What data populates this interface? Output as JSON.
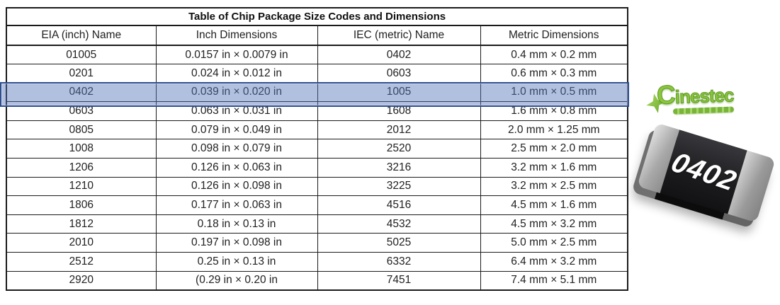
{
  "table": {
    "title": "Table of Chip Package Size Codes and Dimensions",
    "columns": [
      "EIA (inch) Name",
      "Inch Dimensions",
      "IEC (metric) Name",
      "Metric Dimensions"
    ],
    "rows": [
      [
        "01005",
        "0.0157 in × 0.0079 in",
        "0402",
        "0.4 mm × 0.2 mm"
      ],
      [
        "0201",
        "0.024 in × 0.012 in",
        "0603",
        "0.6 mm × 0.3 mm"
      ],
      [
        "0402",
        "0.039 in × 0.020 in",
        "1005",
        "1.0 mm × 0.5 mm"
      ],
      [
        "0603",
        "0.063 in × 0.031 in",
        "1608",
        "1.6 mm × 0.8 mm"
      ],
      [
        "0805",
        "0.079 in × 0.049 in",
        "2012",
        "2.0 mm × 1.25 mm"
      ],
      [
        "1008",
        "0.098 in × 0.079 in",
        "2520",
        "2.5 mm × 2.0 mm"
      ],
      [
        "1206",
        "0.126 in × 0.063 in",
        "3216",
        "3.2 mm × 1.6 mm"
      ],
      [
        "1210",
        "0.126 in × 0.098 in",
        "3225",
        "3.2 mm × 2.5 mm"
      ],
      [
        "1806",
        "0.177 in × 0.063 in",
        "4516",
        "4.5 mm × 1.6 mm"
      ],
      [
        "1812",
        "0.18 in × 0.13 in",
        "4532",
        "4.5 mm × 3.2 mm"
      ],
      [
        "2010",
        "0.197 in × 0.098 in",
        "5025",
        "5.0 mm × 2.5 mm"
      ],
      [
        "2512",
        "0.25 in × 0.13 in",
        "6332",
        "6.4 mm × 3.2 mm"
      ],
      [
        "2920",
        "(0.29 in × 0.20 in",
        "7451",
        "7.4 mm × 5.1 mm"
      ]
    ],
    "highlighted_row_index": 2,
    "highlighted_row_label": "0402"
  },
  "annotation": {
    "type": "highlight-rectangle",
    "fill_color": "#5474ba",
    "border_color": "#2e4f8f"
  },
  "logo": {
    "text": "Cinestec",
    "green": "#8cc63e",
    "green_dark": "#5d9a22"
  },
  "chip_image": {
    "label": "0402",
    "body_color": "#1d1d20",
    "cap_color": "#a9a9a9"
  }
}
